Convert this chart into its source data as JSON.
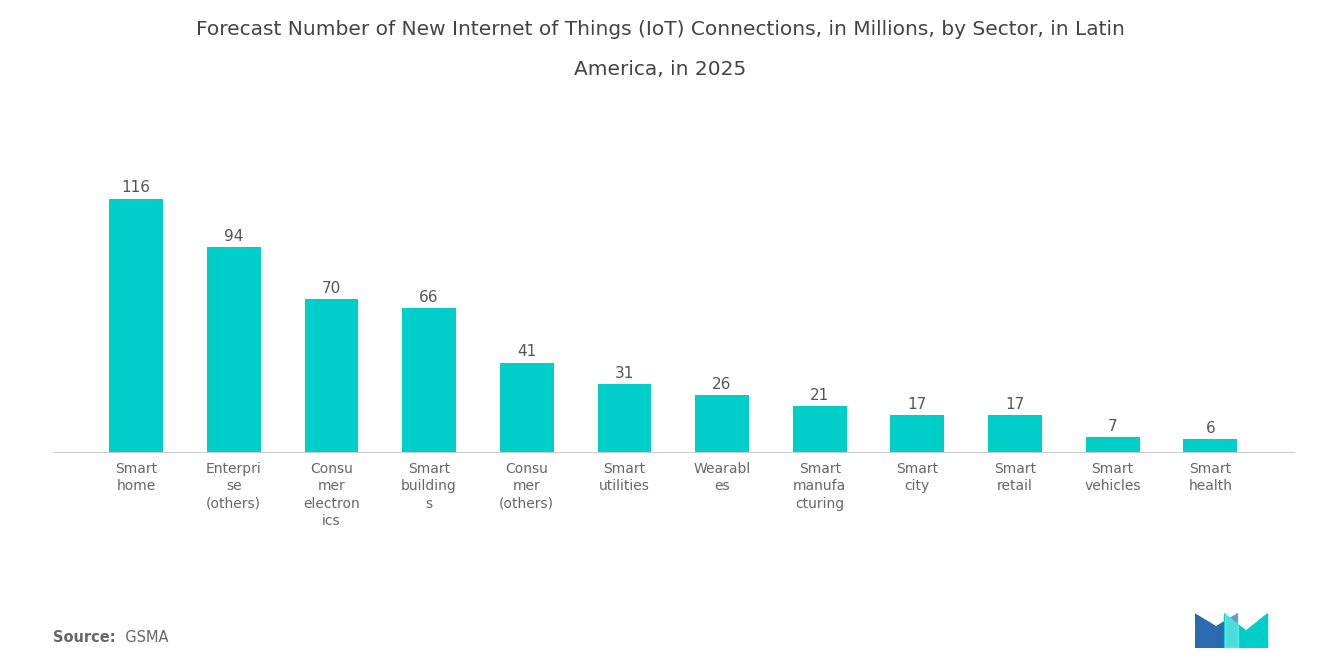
{
  "title_line1": "Forecast Number of New Internet of Things (IoT) Connections, in Millions, by Sector, in Latin",
  "title_line2": "America, in 2025",
  "categories": [
    "Smart\nhome",
    "Enterpri\nse\n(others)",
    "Consu\nmer\nelectron\nics",
    "Smart\nbuilding\ns",
    "Consu\nmer\n(others)",
    "Smart\nutilities",
    "Wearabl\nes",
    "Smart\nmanufa\ncturing",
    "Smart\ncity",
    "Smart\nretail",
    "Smart\nvehicles",
    "Smart\nhealth"
  ],
  "values": [
    116,
    94,
    70,
    66,
    41,
    31,
    26,
    21,
    17,
    17,
    7,
    6
  ],
  "bar_color": "#00CEC9",
  "background_color": "#ffffff",
  "source_bold": "Source:",
  "source_normal": "  GSMA",
  "ylim": [
    0,
    140
  ],
  "title_fontsize": 14.5,
  "label_fontsize": 10,
  "value_fontsize": 11,
  "source_fontsize": 10.5
}
